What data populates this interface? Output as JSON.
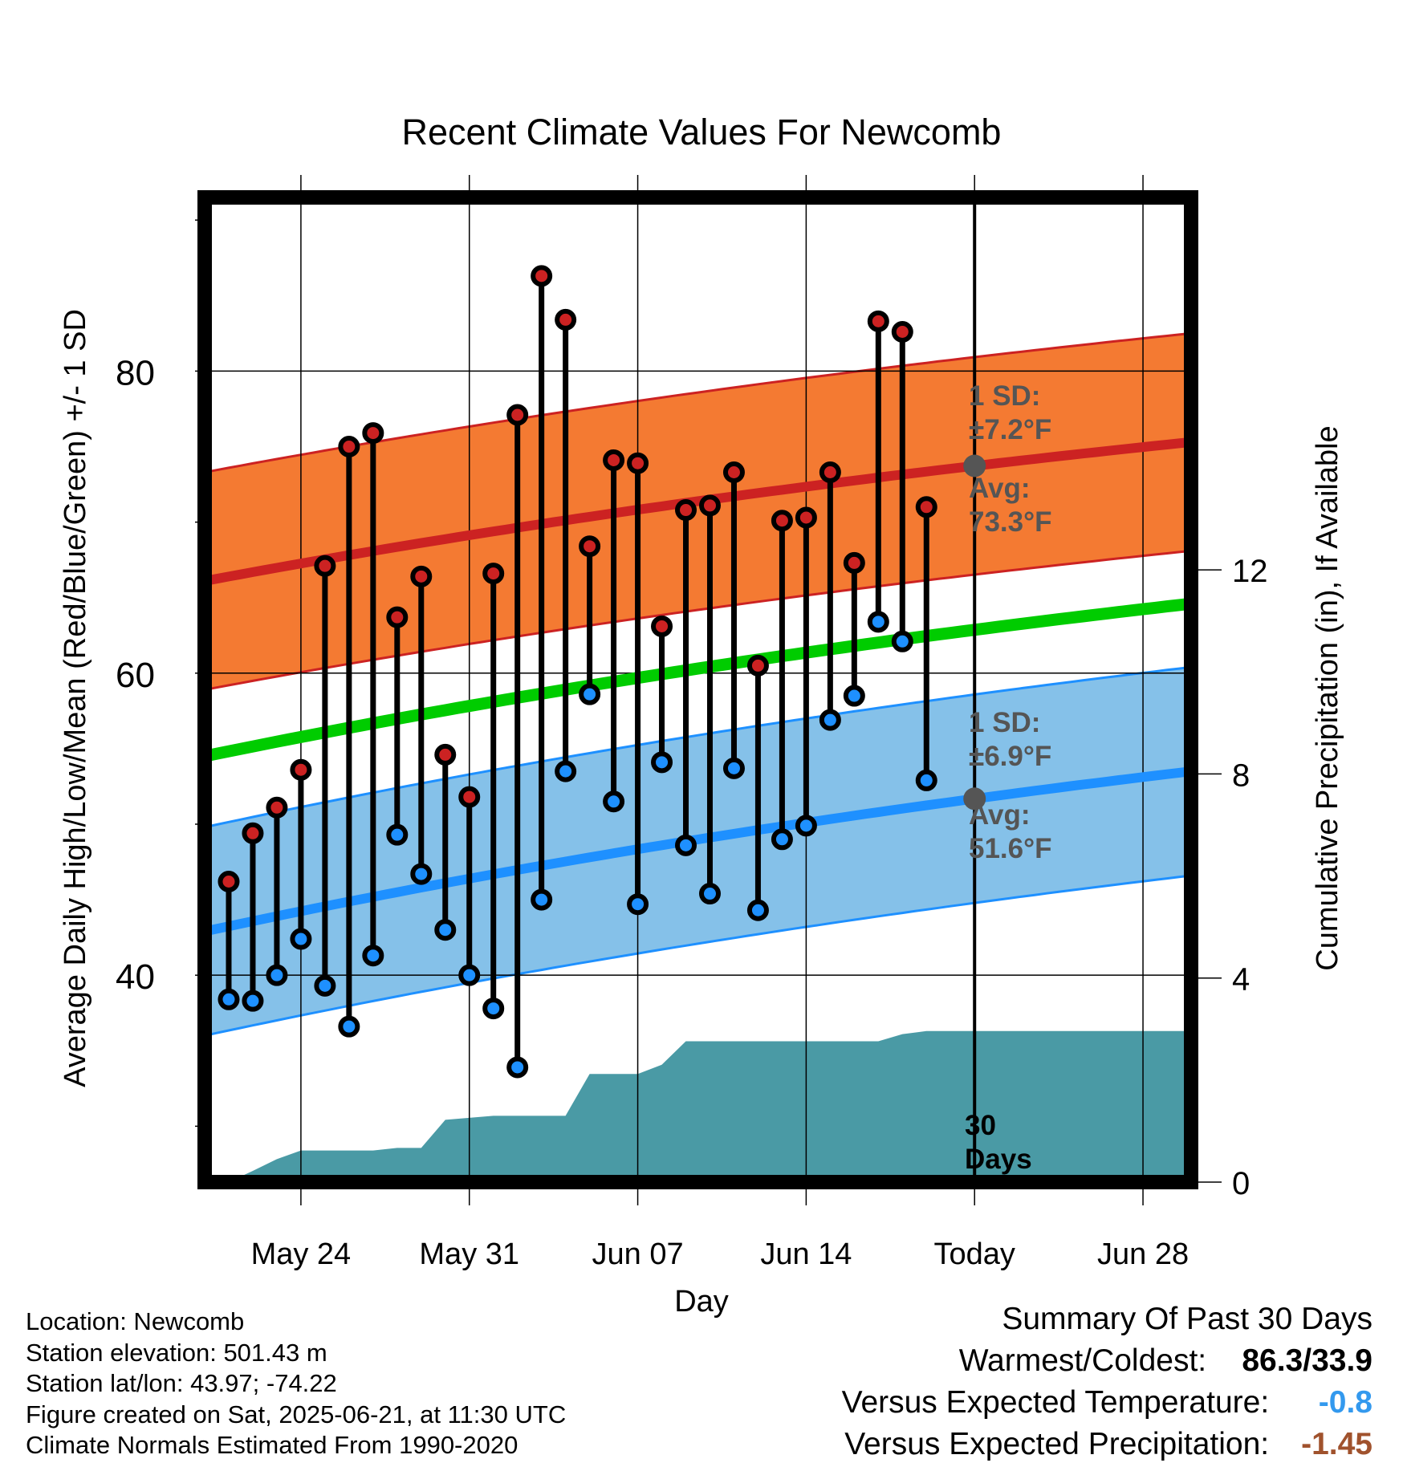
{
  "chart_data": {
    "type": "line",
    "title": "Recent Climate Values For Newcomb",
    "xlabel": "Day",
    "ylabel": "Average Daily High/Low/Mean (Red/Blue/Green) +/- 1 SD",
    "y2label": "Cumulative Precipitation (in), If Available",
    "ylim": [
      26.3,
      91.5
    ],
    "y_ticks": [
      40,
      60,
      80
    ],
    "y2lim": [
      0,
      19.3
    ],
    "y2_ticks": [
      0,
      4,
      8,
      12
    ],
    "x_ticks": [
      "May 24",
      "May 31",
      "Jun 07",
      "Jun 14",
      "Today",
      "Jun 28"
    ],
    "grid": true,
    "annotations": {
      "high_sd_line1": "1 SD:",
      "high_sd_line2": "±7.2°F",
      "high_avg_line1": "Avg:",
      "high_avg_line2": "73.3°F",
      "low_sd_line1": "1 SD:",
      "low_sd_line2": "±6.9°F",
      "low_avg_line1": "Avg:",
      "low_avg_line2": "51.6°F",
      "days_line1": "30",
      "days_line2": "Days"
    },
    "normals": {
      "day_range": [
        -31,
        10
      ],
      "high_avg": [
        66.1,
        75.3
      ],
      "high_sd": 7.2,
      "low_avg": [
        42.9,
        53.5
      ],
      "low_sd": 6.9,
      "mean_avg": [
        54.5,
        64.6
      ]
    },
    "daily_day": [
      -30,
      -29,
      -28,
      -27,
      -26,
      -25,
      -24,
      -23,
      -22,
      -21,
      -20,
      -19,
      -18,
      -17,
      -16,
      -15,
      -14,
      -13,
      -12,
      -11,
      -10,
      -9,
      -8,
      -7,
      -6,
      -5,
      -4,
      -3,
      -2,
      -1
    ],
    "daily_high": [
      46.2,
      49.4,
      51.1,
      53.6,
      67.1,
      75.0,
      75.9,
      63.7,
      66.4,
      54.6,
      51.8,
      66.6,
      77.1,
      86.3,
      83.4,
      68.4,
      74.1,
      73.9,
      63.1,
      70.8,
      71.1,
      73.3,
      60.5,
      70.1,
      70.3,
      73.3,
      67.3,
      83.3,
      82.6,
      71.0
    ],
    "daily_low": [
      38.4,
      38.3,
      40.0,
      42.4,
      39.3,
      36.6,
      41.3,
      49.3,
      46.7,
      43.0,
      40.0,
      37.8,
      33.9,
      45.0,
      53.5,
      58.6,
      51.5,
      44.7,
      54.1,
      48.6,
      45.4,
      53.7,
      44.3,
      49.0,
      49.9,
      56.9,
      58.5,
      63.4,
      62.1,
      52.9
    ],
    "precip_day": [
      -30,
      -29,
      -28,
      -27,
      -26,
      -25,
      -24,
      -23,
      -22,
      -21,
      -20,
      -19,
      -18,
      -17,
      -16,
      -15,
      -14,
      -13,
      -12,
      -11,
      -10,
      -9,
      -8,
      -7,
      -6,
      -5,
      -4,
      -3,
      -2,
      -1,
      0,
      10
    ],
    "precip_cum": [
      0.0,
      0.22,
      0.45,
      0.62,
      0.62,
      0.62,
      0.62,
      0.67,
      0.67,
      1.22,
      1.26,
      1.3,
      1.3,
      1.3,
      1.3,
      2.12,
      2.12,
      2.12,
      2.3,
      2.76,
      2.76,
      2.76,
      2.76,
      2.76,
      2.76,
      2.76,
      2.76,
      2.76,
      2.9,
      2.96,
      2.96,
      2.96
    ]
  },
  "info": {
    "location": "Location: Newcomb",
    "elevation": "Station elevation: 501.43 m",
    "latlon": "Station lat/lon: 43.97; -74.22",
    "created": "Figure created on Sat, 2025-06-21, at 11:30 UTC",
    "normals": "Climate Normals Estimated From 1990-2020"
  },
  "summary": {
    "title": "Summary Of Past 30 Days",
    "warm_cold_label": "Warmest/Coldest:",
    "warm_cold_value": "86.3/33.9",
    "temp_label": "Versus Expected Temperature:",
    "temp_value": "-0.8",
    "precip_label": "Versus Expected Precipitation:",
    "precip_value": "-1.45"
  },
  "colors": {
    "high_band": "#f47a32",
    "high_line": "#cc2222",
    "low_band": "#85c1e9",
    "low_line": "#1e90ff",
    "mean_line": "#00cc00",
    "precip": "#4a9aa5",
    "high_marker": "#cc2222",
    "low_marker": "#1e90ff",
    "avg_marker": "#555555",
    "annotation": "#555555",
    "temp_value": "#3399ee",
    "precip_value": "#a0522d"
  }
}
